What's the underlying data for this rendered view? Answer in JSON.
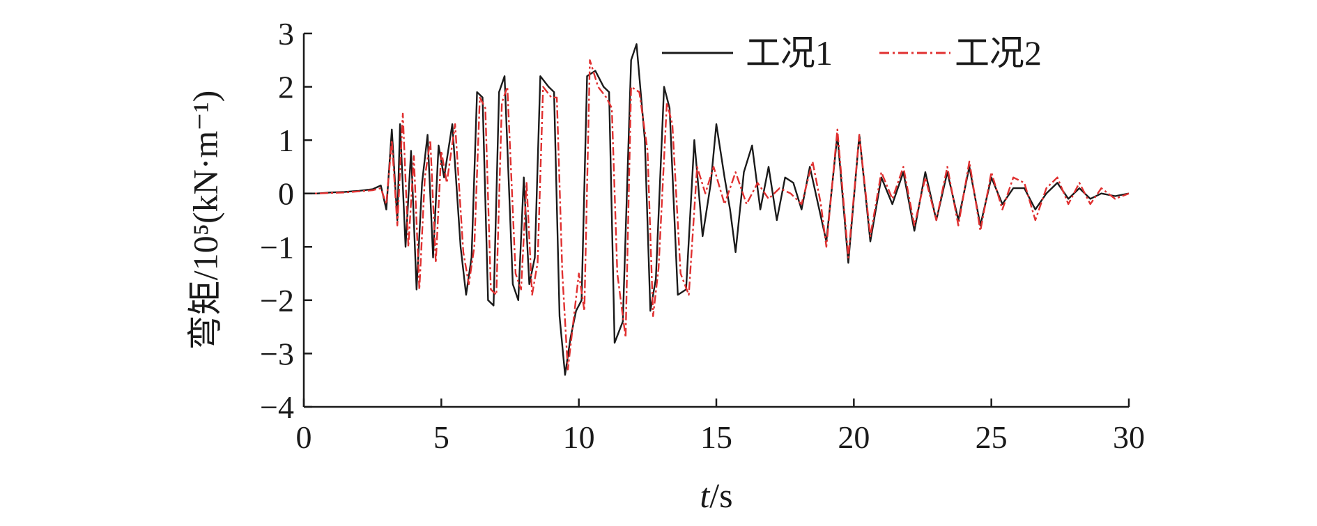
{
  "chart_data": {
    "type": "line",
    "title": "",
    "xlabel": "t/s",
    "xlabel_italic_part": "t",
    "xlabel_rest": "/s",
    "ylabel": "弯矩/10⁵(kN·m⁻¹)",
    "xlim": [
      0,
      30
    ],
    "ylim": [
      -4,
      3
    ],
    "xticks": [
      0,
      5,
      10,
      15,
      20,
      25,
      30
    ],
    "yticks": [
      3,
      2,
      1,
      0,
      -1,
      -2,
      -3,
      -4
    ],
    "xtick_labels": [
      "0",
      "5",
      "10",
      "15",
      "20",
      "25",
      "30"
    ],
    "ytick_labels": [
      "3",
      "2",
      "1",
      "0",
      "−1",
      "−2",
      "−3",
      "−4"
    ],
    "grid": false,
    "legend_position": "top",
    "series": [
      {
        "name": "工况1",
        "color": "#1a1a1a",
        "dash": "solid",
        "points": [
          [
            0,
            0
          ],
          [
            0.5,
            0
          ],
          [
            1.0,
            0.02
          ],
          [
            1.5,
            0.03
          ],
          [
            2.0,
            0.05
          ],
          [
            2.5,
            0.08
          ],
          [
            2.8,
            0.15
          ],
          [
            3.0,
            -0.3
          ],
          [
            3.2,
            1.2
          ],
          [
            3.4,
            -0.5
          ],
          [
            3.5,
            1.3
          ],
          [
            3.7,
            -1.0
          ],
          [
            3.9,
            0.8
          ],
          [
            4.1,
            -1.8
          ],
          [
            4.3,
            0.2
          ],
          [
            4.5,
            1.1
          ],
          [
            4.7,
            -1.2
          ],
          [
            4.9,
            0.9
          ],
          [
            5.1,
            0.3
          ],
          [
            5.4,
            1.3
          ],
          [
            5.7,
            -1.0
          ],
          [
            5.9,
            -1.9
          ],
          [
            6.1,
            -1.2
          ],
          [
            6.3,
            1.9
          ],
          [
            6.5,
            1.8
          ],
          [
            6.7,
            -2.0
          ],
          [
            6.9,
            -2.1
          ],
          [
            7.1,
            1.9
          ],
          [
            7.3,
            2.2
          ],
          [
            7.6,
            -1.7
          ],
          [
            7.8,
            -2.0
          ],
          [
            8.0,
            0.3
          ],
          [
            8.2,
            -1.7
          ],
          [
            8.4,
            -1.2
          ],
          [
            8.6,
            2.2
          ],
          [
            8.9,
            2.0
          ],
          [
            9.1,
            1.9
          ],
          [
            9.3,
            -2.3
          ],
          [
            9.5,
            -3.4
          ],
          [
            9.7,
            -2.7
          ],
          [
            9.9,
            -2.2
          ],
          [
            10.1,
            -2.0
          ],
          [
            10.3,
            2.2
          ],
          [
            10.6,
            2.3
          ],
          [
            10.9,
            2.0
          ],
          [
            11.1,
            1.9
          ],
          [
            11.3,
            -2.8
          ],
          [
            11.6,
            -2.4
          ],
          [
            11.9,
            2.5
          ],
          [
            12.1,
            2.8
          ],
          [
            12.4,
            1.0
          ],
          [
            12.6,
            -2.2
          ],
          [
            12.8,
            -1.6
          ],
          [
            13.1,
            2.0
          ],
          [
            13.3,
            1.6
          ],
          [
            13.6,
            -1.9
          ],
          [
            13.9,
            -1.8
          ],
          [
            14.2,
            1.0
          ],
          [
            14.5,
            -0.8
          ],
          [
            14.8,
            0.2
          ],
          [
            15.0,
            1.3
          ],
          [
            15.3,
            0.3
          ],
          [
            15.5,
            -0.3
          ],
          [
            15.7,
            -1.1
          ],
          [
            16.0,
            0.4
          ],
          [
            16.3,
            0.9
          ],
          [
            16.6,
            -0.3
          ],
          [
            16.9,
            0.5
          ],
          [
            17.2,
            -0.5
          ],
          [
            17.5,
            0.3
          ],
          [
            17.8,
            0.2
          ],
          [
            18.1,
            -0.3
          ],
          [
            18.4,
            0.5
          ],
          [
            18.7,
            -0.2
          ],
          [
            19.0,
            -0.9
          ],
          [
            19.4,
            1.1
          ],
          [
            19.8,
            -1.3
          ],
          [
            20.2,
            1.1
          ],
          [
            20.6,
            -0.9
          ],
          [
            21.0,
            0.3
          ],
          [
            21.4,
            -0.2
          ],
          [
            21.8,
            0.4
          ],
          [
            22.2,
            -0.7
          ],
          [
            22.6,
            0.4
          ],
          [
            23.0,
            -0.5
          ],
          [
            23.4,
            0.4
          ],
          [
            23.8,
            -0.5
          ],
          [
            24.2,
            0.5
          ],
          [
            24.6,
            -0.6
          ],
          [
            25.0,
            0.3
          ],
          [
            25.4,
            -0.2
          ],
          [
            25.8,
            0.1
          ],
          [
            26.2,
            0.1
          ],
          [
            26.6,
            -0.3
          ],
          [
            27.0,
            0.0
          ],
          [
            27.4,
            0.2
          ],
          [
            27.8,
            -0.1
          ],
          [
            28.2,
            0.1
          ],
          [
            28.6,
            -0.1
          ],
          [
            29.0,
            0.0
          ],
          [
            29.5,
            -0.05
          ],
          [
            30.0,
            0.0
          ]
        ]
      },
      {
        "name": "工况2",
        "color": "#e03030",
        "dash": "dashdot",
        "points": [
          [
            0,
            0
          ],
          [
            0.5,
            0
          ],
          [
            1.0,
            0.01
          ],
          [
            1.5,
            0.02
          ],
          [
            2.0,
            0.04
          ],
          [
            2.5,
            0.06
          ],
          [
            2.8,
            0.1
          ],
          [
            3.0,
            -0.2
          ],
          [
            3.2,
            1.0
          ],
          [
            3.4,
            -0.6
          ],
          [
            3.6,
            1.5
          ],
          [
            3.8,
            -1.0
          ],
          [
            4.0,
            0.7
          ],
          [
            4.2,
            -1.8
          ],
          [
            4.4,
            0.3
          ],
          [
            4.6,
            1.0
          ],
          [
            4.8,
            -1.3
          ],
          [
            5.0,
            0.8
          ],
          [
            5.2,
            0.2
          ],
          [
            5.5,
            1.3
          ],
          [
            5.8,
            -1.1
          ],
          [
            6.0,
            -1.7
          ],
          [
            6.2,
            -1.0
          ],
          [
            6.4,
            1.8
          ],
          [
            6.6,
            1.6
          ],
          [
            6.8,
            -1.8
          ],
          [
            7.0,
            -1.9
          ],
          [
            7.2,
            1.7
          ],
          [
            7.4,
            2.0
          ],
          [
            7.7,
            -1.5
          ],
          [
            7.9,
            -1.8
          ],
          [
            8.1,
            0.2
          ],
          [
            8.3,
            -1.9
          ],
          [
            8.5,
            -1.3
          ],
          [
            8.7,
            2.0
          ],
          [
            9.0,
            1.8
          ],
          [
            9.2,
            1.8
          ],
          [
            9.4,
            -1.5
          ],
          [
            9.6,
            -3.3
          ],
          [
            9.8,
            -2.4
          ],
          [
            10.0,
            -1.5
          ],
          [
            10.2,
            -2.2
          ],
          [
            10.4,
            2.5
          ],
          [
            10.7,
            2.0
          ],
          [
            11.0,
            1.8
          ],
          [
            11.2,
            1.6
          ],
          [
            11.4,
            -1.5
          ],
          [
            11.7,
            -2.7
          ],
          [
            11.9,
            2.0
          ],
          [
            12.2,
            1.9
          ],
          [
            12.5,
            0.8
          ],
          [
            12.7,
            -2.3
          ],
          [
            12.9,
            -1.4
          ],
          [
            13.2,
            1.7
          ],
          [
            13.4,
            1.3
          ],
          [
            13.7,
            -1.5
          ],
          [
            14.0,
            -1.9
          ],
          [
            14.3,
            0.5
          ],
          [
            14.6,
            0.0
          ],
          [
            14.9,
            0.5
          ],
          [
            15.3,
            -0.2
          ],
          [
            15.7,
            0.4
          ],
          [
            16.1,
            -0.2
          ],
          [
            16.5,
            0.2
          ],
          [
            16.9,
            -0.1
          ],
          [
            17.3,
            0.1
          ],
          [
            17.7,
            0.0
          ],
          [
            18.1,
            -0.2
          ],
          [
            18.5,
            0.6
          ],
          [
            18.8,
            -0.2
          ],
          [
            19.0,
            -1.0
          ],
          [
            19.4,
            1.2
          ],
          [
            19.8,
            -1.2
          ],
          [
            20.2,
            1.1
          ],
          [
            20.6,
            -0.8
          ],
          [
            21.0,
            0.4
          ],
          [
            21.4,
            -0.1
          ],
          [
            21.8,
            0.5
          ],
          [
            22.2,
            -0.6
          ],
          [
            22.6,
            0.3
          ],
          [
            23.0,
            -0.5
          ],
          [
            23.4,
            0.5
          ],
          [
            23.8,
            -0.6
          ],
          [
            24.2,
            0.6
          ],
          [
            24.6,
            -0.7
          ],
          [
            25.0,
            0.4
          ],
          [
            25.4,
            -0.3
          ],
          [
            25.8,
            0.3
          ],
          [
            26.2,
            0.2
          ],
          [
            26.6,
            -0.5
          ],
          [
            27.0,
            0.1
          ],
          [
            27.4,
            0.3
          ],
          [
            27.8,
            -0.2
          ],
          [
            28.2,
            0.2
          ],
          [
            28.6,
            -0.2
          ],
          [
            29.0,
            0.1
          ],
          [
            29.5,
            -0.1
          ],
          [
            30.0,
            0.0
          ]
        ]
      }
    ]
  }
}
